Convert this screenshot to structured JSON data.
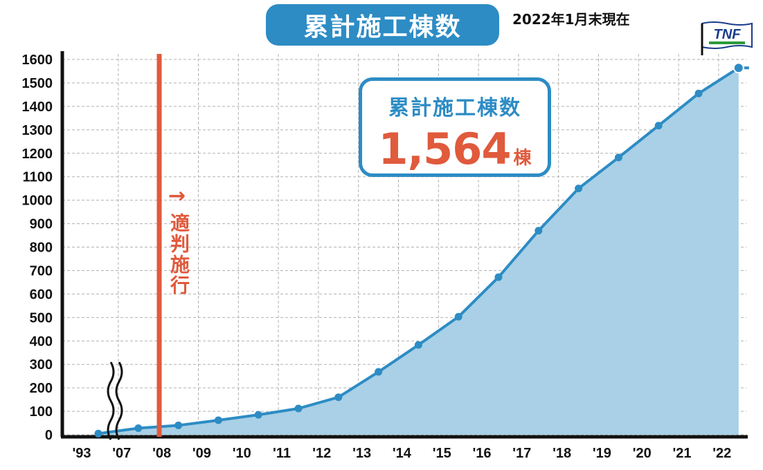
{
  "title": "累計施工棟数",
  "as_of": "2022年1月末現在",
  "badge": {
    "label": "累計施工棟数",
    "value": "1,564",
    "unit": "棟"
  },
  "annotation": {
    "arrow": "→",
    "text": "適判施行",
    "year": "'08"
  },
  "logo": {
    "text": "TNF"
  },
  "colors": {
    "line": "#2d8cc4",
    "fill": "#a9d0e6",
    "accent": "#e05a3c",
    "grid": "#b0b0b0"
  },
  "chart_data": {
    "type": "area",
    "title": "累計施工棟数",
    "xlabel": "",
    "ylabel": "",
    "categories": [
      "'93",
      "'07",
      "'08",
      "'09",
      "'10",
      "'11",
      "'12",
      "'13",
      "'14",
      "'15",
      "'16",
      "'17",
      "'18",
      "'19",
      "'20",
      "'21",
      "'22"
    ],
    "ylim": [
      0,
      1600
    ],
    "yticks": [
      0,
      100,
      200,
      300,
      400,
      500,
      600,
      700,
      800,
      900,
      1000,
      1100,
      1200,
      1300,
      1400,
      1500,
      1600
    ],
    "series": [
      {
        "values": [
          5,
          28,
          40,
          62,
          85,
          112,
          160,
          268,
          383,
          503,
          672,
          870,
          1050,
          1182,
          1318,
          1455,
          1564
        ]
      }
    ],
    "grid": true,
    "axis_break": "'93-'07"
  }
}
